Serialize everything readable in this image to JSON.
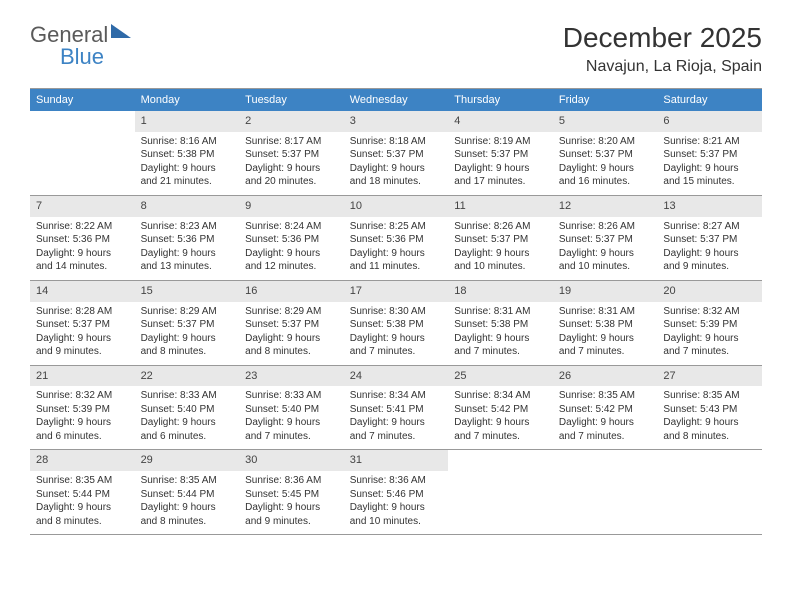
{
  "logo": {
    "part1": "General",
    "part2": "Blue"
  },
  "title": "December 2025",
  "location": "Navajun, La Rioja, Spain",
  "colors": {
    "header_bg": "#3d83c4",
    "header_fg": "#ffffff",
    "daynum_bg": "#e8e8e8",
    "text": "#333333",
    "logo_gray": "#5a5a5a",
    "logo_blue": "#3d83c4",
    "border": "#999999"
  },
  "day_names": [
    "Sunday",
    "Monday",
    "Tuesday",
    "Wednesday",
    "Thursday",
    "Friday",
    "Saturday"
  ],
  "weeks": [
    [
      {
        "num": "",
        "sunrise": "",
        "sunset": "",
        "daylight": ""
      },
      {
        "num": "1",
        "sunrise": "Sunrise: 8:16 AM",
        "sunset": "Sunset: 5:38 PM",
        "daylight": "Daylight: 9 hours and 21 minutes."
      },
      {
        "num": "2",
        "sunrise": "Sunrise: 8:17 AM",
        "sunset": "Sunset: 5:37 PM",
        "daylight": "Daylight: 9 hours and 20 minutes."
      },
      {
        "num": "3",
        "sunrise": "Sunrise: 8:18 AM",
        "sunset": "Sunset: 5:37 PM",
        "daylight": "Daylight: 9 hours and 18 minutes."
      },
      {
        "num": "4",
        "sunrise": "Sunrise: 8:19 AM",
        "sunset": "Sunset: 5:37 PM",
        "daylight": "Daylight: 9 hours and 17 minutes."
      },
      {
        "num": "5",
        "sunrise": "Sunrise: 8:20 AM",
        "sunset": "Sunset: 5:37 PM",
        "daylight": "Daylight: 9 hours and 16 minutes."
      },
      {
        "num": "6",
        "sunrise": "Sunrise: 8:21 AM",
        "sunset": "Sunset: 5:37 PM",
        "daylight": "Daylight: 9 hours and 15 minutes."
      }
    ],
    [
      {
        "num": "7",
        "sunrise": "Sunrise: 8:22 AM",
        "sunset": "Sunset: 5:36 PM",
        "daylight": "Daylight: 9 hours and 14 minutes."
      },
      {
        "num": "8",
        "sunrise": "Sunrise: 8:23 AM",
        "sunset": "Sunset: 5:36 PM",
        "daylight": "Daylight: 9 hours and 13 minutes."
      },
      {
        "num": "9",
        "sunrise": "Sunrise: 8:24 AM",
        "sunset": "Sunset: 5:36 PM",
        "daylight": "Daylight: 9 hours and 12 minutes."
      },
      {
        "num": "10",
        "sunrise": "Sunrise: 8:25 AM",
        "sunset": "Sunset: 5:36 PM",
        "daylight": "Daylight: 9 hours and 11 minutes."
      },
      {
        "num": "11",
        "sunrise": "Sunrise: 8:26 AM",
        "sunset": "Sunset: 5:37 PM",
        "daylight": "Daylight: 9 hours and 10 minutes."
      },
      {
        "num": "12",
        "sunrise": "Sunrise: 8:26 AM",
        "sunset": "Sunset: 5:37 PM",
        "daylight": "Daylight: 9 hours and 10 minutes."
      },
      {
        "num": "13",
        "sunrise": "Sunrise: 8:27 AM",
        "sunset": "Sunset: 5:37 PM",
        "daylight": "Daylight: 9 hours and 9 minutes."
      }
    ],
    [
      {
        "num": "14",
        "sunrise": "Sunrise: 8:28 AM",
        "sunset": "Sunset: 5:37 PM",
        "daylight": "Daylight: 9 hours and 9 minutes."
      },
      {
        "num": "15",
        "sunrise": "Sunrise: 8:29 AM",
        "sunset": "Sunset: 5:37 PM",
        "daylight": "Daylight: 9 hours and 8 minutes."
      },
      {
        "num": "16",
        "sunrise": "Sunrise: 8:29 AM",
        "sunset": "Sunset: 5:37 PM",
        "daylight": "Daylight: 9 hours and 8 minutes."
      },
      {
        "num": "17",
        "sunrise": "Sunrise: 8:30 AM",
        "sunset": "Sunset: 5:38 PM",
        "daylight": "Daylight: 9 hours and 7 minutes."
      },
      {
        "num": "18",
        "sunrise": "Sunrise: 8:31 AM",
        "sunset": "Sunset: 5:38 PM",
        "daylight": "Daylight: 9 hours and 7 minutes."
      },
      {
        "num": "19",
        "sunrise": "Sunrise: 8:31 AM",
        "sunset": "Sunset: 5:38 PM",
        "daylight": "Daylight: 9 hours and 7 minutes."
      },
      {
        "num": "20",
        "sunrise": "Sunrise: 8:32 AM",
        "sunset": "Sunset: 5:39 PM",
        "daylight": "Daylight: 9 hours and 7 minutes."
      }
    ],
    [
      {
        "num": "21",
        "sunrise": "Sunrise: 8:32 AM",
        "sunset": "Sunset: 5:39 PM",
        "daylight": "Daylight: 9 hours and 6 minutes."
      },
      {
        "num": "22",
        "sunrise": "Sunrise: 8:33 AM",
        "sunset": "Sunset: 5:40 PM",
        "daylight": "Daylight: 9 hours and 6 minutes."
      },
      {
        "num": "23",
        "sunrise": "Sunrise: 8:33 AM",
        "sunset": "Sunset: 5:40 PM",
        "daylight": "Daylight: 9 hours and 7 minutes."
      },
      {
        "num": "24",
        "sunrise": "Sunrise: 8:34 AM",
        "sunset": "Sunset: 5:41 PM",
        "daylight": "Daylight: 9 hours and 7 minutes."
      },
      {
        "num": "25",
        "sunrise": "Sunrise: 8:34 AM",
        "sunset": "Sunset: 5:42 PM",
        "daylight": "Daylight: 9 hours and 7 minutes."
      },
      {
        "num": "26",
        "sunrise": "Sunrise: 8:35 AM",
        "sunset": "Sunset: 5:42 PM",
        "daylight": "Daylight: 9 hours and 7 minutes."
      },
      {
        "num": "27",
        "sunrise": "Sunrise: 8:35 AM",
        "sunset": "Sunset: 5:43 PM",
        "daylight": "Daylight: 9 hours and 8 minutes."
      }
    ],
    [
      {
        "num": "28",
        "sunrise": "Sunrise: 8:35 AM",
        "sunset": "Sunset: 5:44 PM",
        "daylight": "Daylight: 9 hours and 8 minutes."
      },
      {
        "num": "29",
        "sunrise": "Sunrise: 8:35 AM",
        "sunset": "Sunset: 5:44 PM",
        "daylight": "Daylight: 9 hours and 8 minutes."
      },
      {
        "num": "30",
        "sunrise": "Sunrise: 8:36 AM",
        "sunset": "Sunset: 5:45 PM",
        "daylight": "Daylight: 9 hours and 9 minutes."
      },
      {
        "num": "31",
        "sunrise": "Sunrise: 8:36 AM",
        "sunset": "Sunset: 5:46 PM",
        "daylight": "Daylight: 9 hours and 10 minutes."
      },
      {
        "num": "",
        "sunrise": "",
        "sunset": "",
        "daylight": ""
      },
      {
        "num": "",
        "sunrise": "",
        "sunset": "",
        "daylight": ""
      },
      {
        "num": "",
        "sunrise": "",
        "sunset": "",
        "daylight": ""
      }
    ]
  ]
}
